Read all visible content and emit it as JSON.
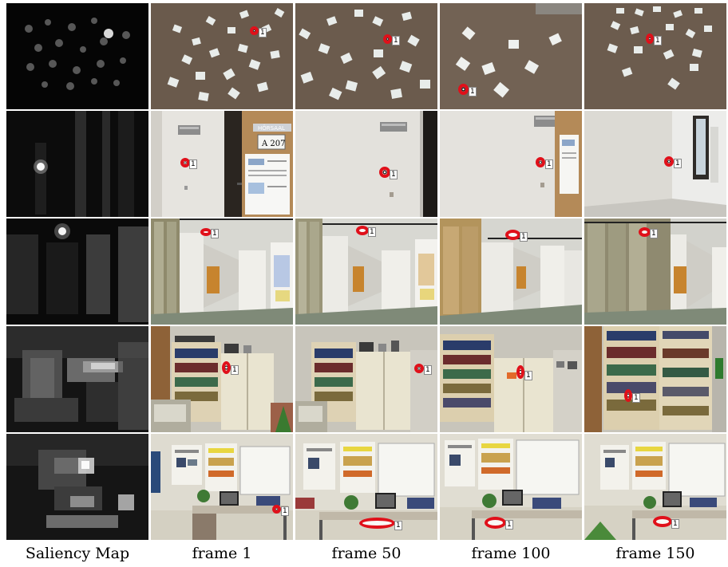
{
  "figure": {
    "captions": [
      "Saliency Map",
      "frame 1",
      "frame 50",
      "frame 100",
      "frame 150"
    ],
    "marker_label": "1",
    "rows": [
      {
        "scene": "carpet-with-paper-cards",
        "marker_frames": [
          1,
          2,
          3,
          4
        ]
      },
      {
        "scene": "wall-with-door-sign-A207",
        "sign_text": [
          "HÖRSAAL",
          "A 207"
        ],
        "marker_frames": [
          1,
          2,
          3,
          4
        ]
      },
      {
        "scene": "office-corridor",
        "marker_frames": [
          1,
          2,
          3,
          4
        ]
      },
      {
        "scene": "office-bookshelf",
        "marker_frames": [
          1,
          2,
          3,
          4
        ]
      },
      {
        "scene": "office-desk-with-posters",
        "marker_frames": [
          1,
          2,
          3,
          4
        ]
      }
    ]
  }
}
